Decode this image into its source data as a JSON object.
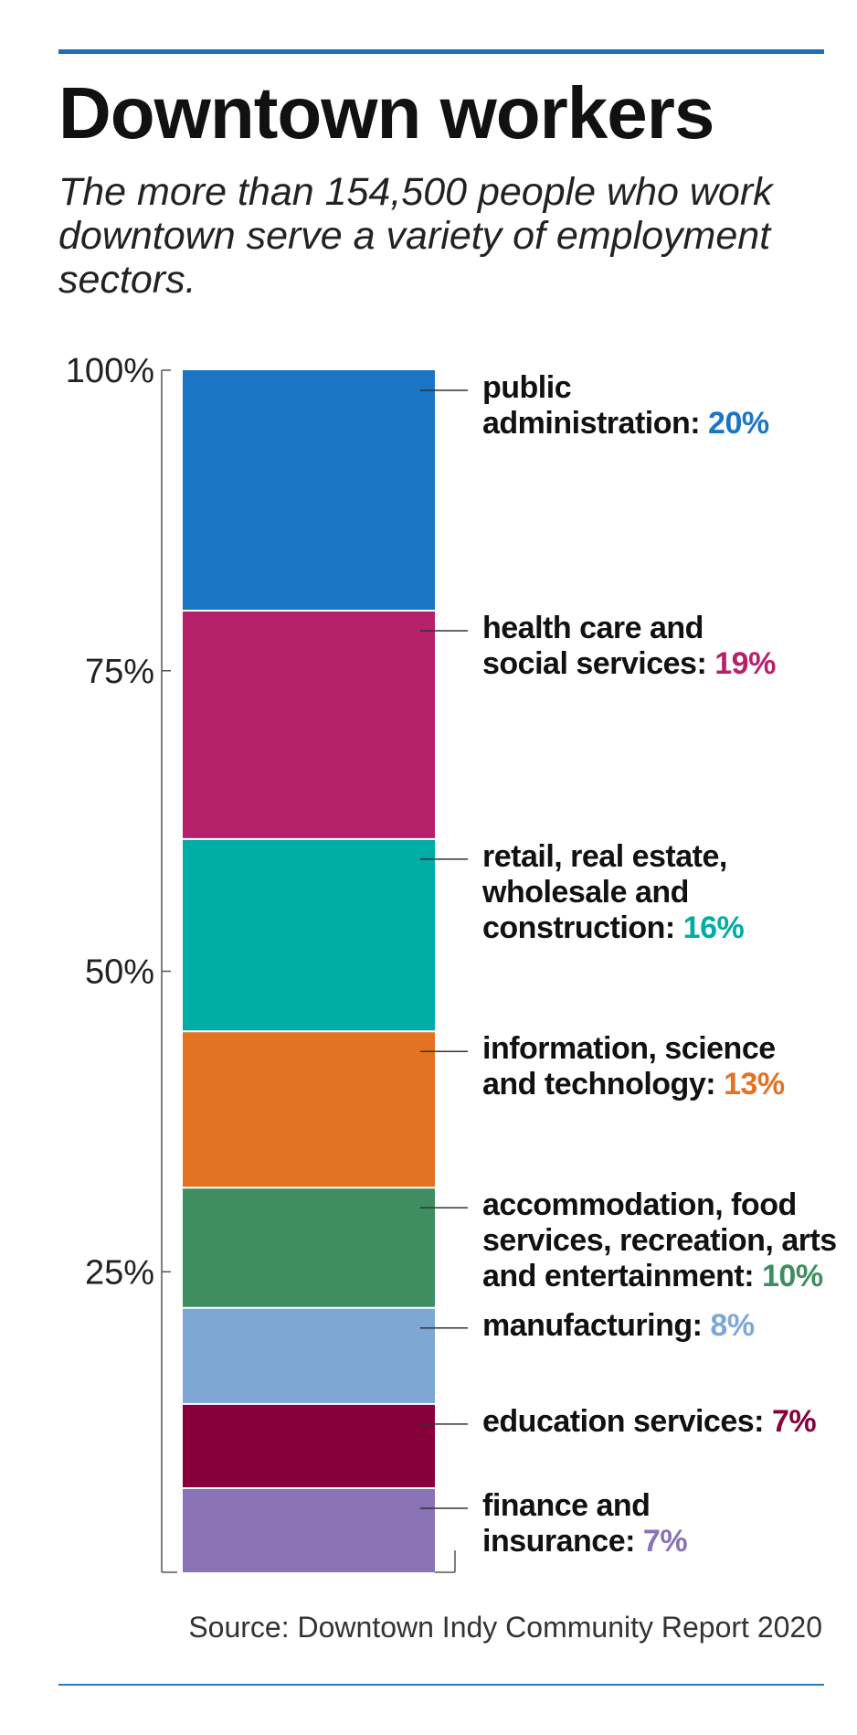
{
  "header": {
    "title": "Downtown workers",
    "subtitle": "The more than 154,500 people who work downtown serve a variety of employment sectors."
  },
  "footer": {
    "source": "Source: Downtown Indy Community Report 2020"
  },
  "chart_data": {
    "type": "bar",
    "stacked": true,
    "title": "Downtown workers",
    "subtitle": "The more than 154,500 people who work downtown serve a variety of employment sectors.",
    "ylim": [
      0,
      100
    ],
    "yticks": [
      "100%",
      "75%",
      "50%",
      "25%"
    ],
    "ytick_values": [
      100,
      75,
      50,
      25
    ],
    "grid": false,
    "series": [
      {
        "label_lines": [
          "public",
          "administration:"
        ],
        "pct_label": "20%",
        "value": 20,
        "color": "#1a76c4"
      },
      {
        "label_lines": [
          "health care and",
          "social services:"
        ],
        "pct_label": "19%",
        "value": 19,
        "color": "#b5226b"
      },
      {
        "label_lines": [
          "retail, real estate,",
          "wholesale and",
          "construction:"
        ],
        "pct_label": "16%",
        "value": 16,
        "color": "#00ada5"
      },
      {
        "label_lines": [
          "information, science",
          "and technology:"
        ],
        "pct_label": "13%",
        "value": 13,
        "color": "#e27322"
      },
      {
        "label_lines": [
          "accommodation, food",
          "services, recreation, arts",
          "and entertainment:"
        ],
        "pct_label": "10%",
        "value": 10,
        "color": "#3e8e62"
      },
      {
        "label_lines": [
          "manufacturing:"
        ],
        "pct_label": "8%",
        "value": 8,
        "color": "#7ea7d6"
      },
      {
        "label_lines": [
          "education services:"
        ],
        "pct_label": "7%",
        "value": 7,
        "color": "#87003a"
      },
      {
        "label_lines": [
          "finance and",
          "insurance:"
        ],
        "pct_label": "7%",
        "value": 7,
        "color": "#8a72b6"
      }
    ]
  }
}
